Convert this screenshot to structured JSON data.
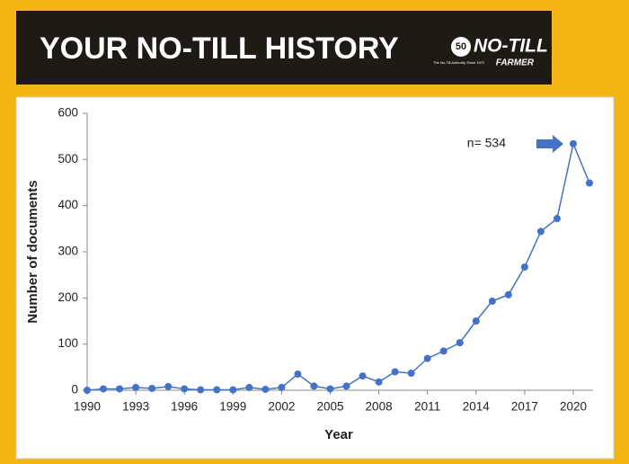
{
  "header": {
    "title": "YOUR NO-TILL HISTORY",
    "logo": {
      "badge": "50",
      "name": "NO-TILL",
      "subname": "FARMER",
      "tagline": "The No-Till Authority Since 1972"
    }
  },
  "chart_data": {
    "type": "line",
    "x": [
      1990,
      1991,
      1992,
      1993,
      1994,
      1995,
      1996,
      1997,
      1998,
      1999,
      2000,
      2001,
      2002,
      2003,
      2004,
      2005,
      2006,
      2007,
      2008,
      2009,
      2010,
      2011,
      2012,
      2013,
      2014,
      2015,
      2016,
      2017,
      2018,
      2019,
      2020,
      2021
    ],
    "series": [
      {
        "name": "Number of documents",
        "color": "#4472c4",
        "values": [
          0,
          3,
          3,
          6,
          4,
          8,
          3,
          1,
          1,
          1,
          6,
          2,
          6,
          35,
          9,
          3,
          9,
          31,
          18,
          40,
          37,
          69,
          85,
          103,
          150,
          193,
          207,
          267,
          344,
          372,
          534,
          449
        ]
      }
    ],
    "xlim": [
      1990,
      2021
    ],
    "xticks": [
      1990,
      1993,
      1996,
      1999,
      2002,
      2005,
      2008,
      2011,
      2014,
      2017,
      2020
    ],
    "ylim": [
      0,
      600
    ],
    "yticks": [
      0,
      100,
      200,
      300,
      400,
      500,
      600
    ],
    "xlabel": "Year",
    "ylabel": "Number of documents",
    "annotation": "n= 534",
    "grid": false
  }
}
